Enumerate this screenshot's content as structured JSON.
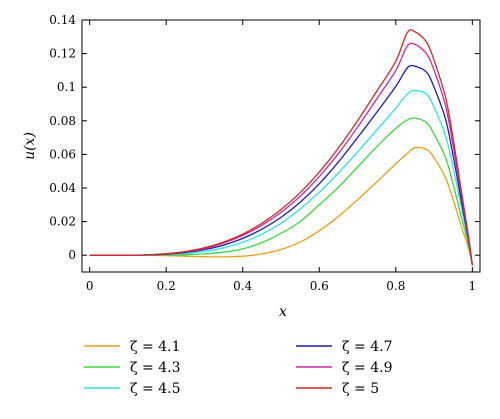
{
  "chart_data": {
    "type": "line",
    "title": "",
    "xlabel": "x",
    "ylabel": "u(x)",
    "xlim": [
      -0.02,
      1.02
    ],
    "ylim": [
      -0.01,
      0.14
    ],
    "xticks": [
      0,
      0.2,
      0.4,
      0.6,
      0.8,
      1
    ],
    "xtick_labels": [
      "0",
      "0.2",
      "0.4",
      "0.6",
      "0.8",
      "1"
    ],
    "yticks": [
      0,
      0.02,
      0.04,
      0.06,
      0.08,
      0.1,
      0.12,
      0.14
    ],
    "ytick_labels": [
      "0",
      "0.02",
      "0.04",
      "0.06",
      "0.08",
      "0.1",
      "0.12",
      "0.14"
    ],
    "grid": false,
    "legend_position": "bottom",
    "x": [
      0,
      0.05,
      0.1,
      0.15,
      0.2,
      0.25,
      0.3,
      0.35,
      0.4,
      0.45,
      0.5,
      0.55,
      0.6,
      0.65,
      0.7,
      0.75,
      0.8,
      0.83,
      0.85,
      0.88,
      0.9,
      0.93,
      0.95,
      0.97,
      0.99,
      1.0
    ],
    "series": [
      {
        "name": "ζ = 4.1",
        "color": "#e8a21c",
        "values": [
          0,
          0,
          0,
          -0.0001,
          -0.0003,
          -0.0006,
          -0.0009,
          -0.001,
          -0.0006,
          0.0008,
          0.0034,
          0.0078,
          0.0145,
          0.023,
          0.033,
          0.0435,
          0.0545,
          0.0605,
          0.064,
          0.063,
          0.058,
          0.046,
          0.033,
          0.018,
          0.004,
          -0.006
        ]
      },
      {
        "name": "ζ = 4.3",
        "color": "#3fd63f",
        "values": [
          0,
          0,
          0,
          0,
          0.0001,
          0.0003,
          0.0008,
          0.0018,
          0.0038,
          0.0075,
          0.013,
          0.02,
          0.03,
          0.0405,
          0.0525,
          0.0645,
          0.0755,
          0.0805,
          0.0815,
          0.079,
          0.072,
          0.058,
          0.042,
          0.024,
          0.006,
          -0.006
        ]
      },
      {
        "name": "ζ = 4.5",
        "color": "#2fe4e4",
        "values": [
          0,
          0,
          0,
          0,
          0.0004,
          0.001,
          0.0022,
          0.0044,
          0.0077,
          0.0125,
          0.019,
          0.0275,
          0.0375,
          0.049,
          0.0615,
          0.0745,
          0.0875,
          0.096,
          0.098,
          0.096,
          0.088,
          0.071,
          0.052,
          0.03,
          0.008,
          -0.006
        ]
      },
      {
        "name": "ζ = 4.7",
        "color": "#1c1cb0",
        "values": [
          0,
          0,
          0,
          0.0001,
          0.0006,
          0.0016,
          0.0033,
          0.006,
          0.01,
          0.0155,
          0.0225,
          0.0315,
          0.0425,
          0.0555,
          0.07,
          0.085,
          0.1005,
          0.1115,
          0.1125,
          0.109,
          0.1,
          0.081,
          0.059,
          0.034,
          0.009,
          -0.006
        ]
      },
      {
        "name": "ζ = 4.9",
        "color": "#cc2aa0",
        "values": [
          0,
          0,
          0,
          0.0002,
          0.0008,
          0.002,
          0.004,
          0.0072,
          0.0118,
          0.0178,
          0.0255,
          0.035,
          0.0468,
          0.0605,
          0.0762,
          0.093,
          0.11,
          0.1245,
          0.1255,
          0.12,
          0.11,
          0.089,
          0.065,
          0.038,
          0.01,
          -0.006
        ]
      },
      {
        "name": "ζ = 5",
        "color": "#d42828",
        "values": [
          0,
          0,
          0,
          0.0002,
          0.0009,
          0.0022,
          0.0044,
          0.0078,
          0.0126,
          0.019,
          0.0272,
          0.0372,
          0.0495,
          0.0638,
          0.08,
          0.0975,
          0.1155,
          0.1325,
          0.133,
          0.127,
          0.116,
          0.094,
          0.069,
          0.04,
          0.011,
          -0.006
        ]
      }
    ]
  }
}
